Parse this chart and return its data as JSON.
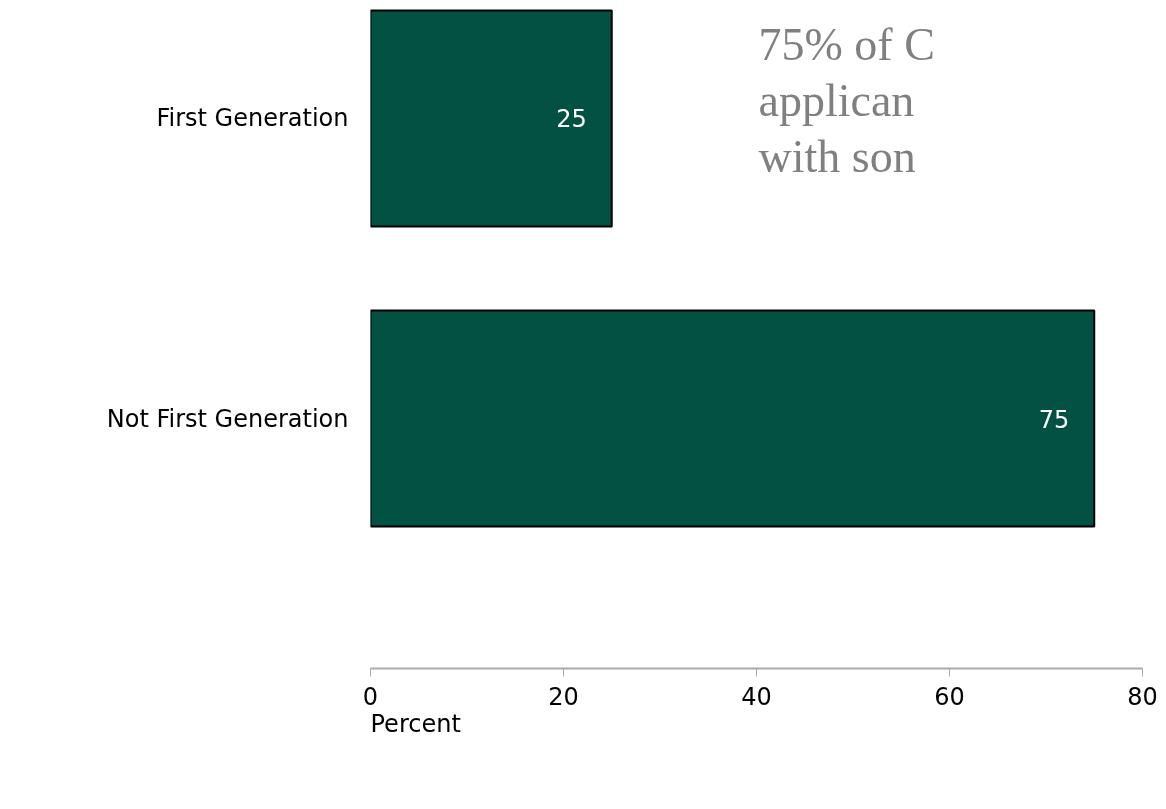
{
  "chart_data": {
    "type": "bar",
    "orientation": "horizontal",
    "categories": [
      "First Generation",
      "Not First Generation"
    ],
    "values": [
      25,
      75
    ],
    "color": "#035142",
    "data_labels": true,
    "xlim": [
      0,
      80
    ],
    "xticks": [
      0,
      20,
      40,
      60,
      80
    ],
    "xlabel": "Percent",
    "grid": false,
    "annotations": [
      "75% of C\napplican\nwith son"
    ]
  }
}
